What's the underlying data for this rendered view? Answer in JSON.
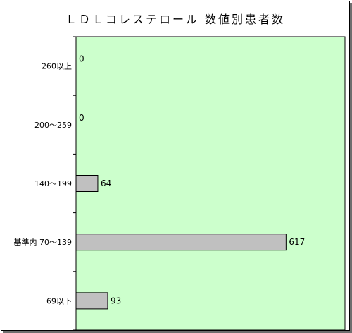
{
  "chart_data": {
    "type": "bar",
    "orientation": "horizontal",
    "title": "ＬＤＬコレステロール 数値別患者数",
    "categories": [
      "260以上",
      "200～259",
      "140～199",
      "基準内 70～139",
      "69以下"
    ],
    "values": [
      0,
      0,
      64,
      617,
      93
    ],
    "xlim": [
      0,
      790
    ],
    "grid": false,
    "legend": "none"
  },
  "colors": {
    "plot_background": "#ccffcc",
    "bar_fill": "#c0c0c0",
    "bar_stroke": "#000000"
  }
}
